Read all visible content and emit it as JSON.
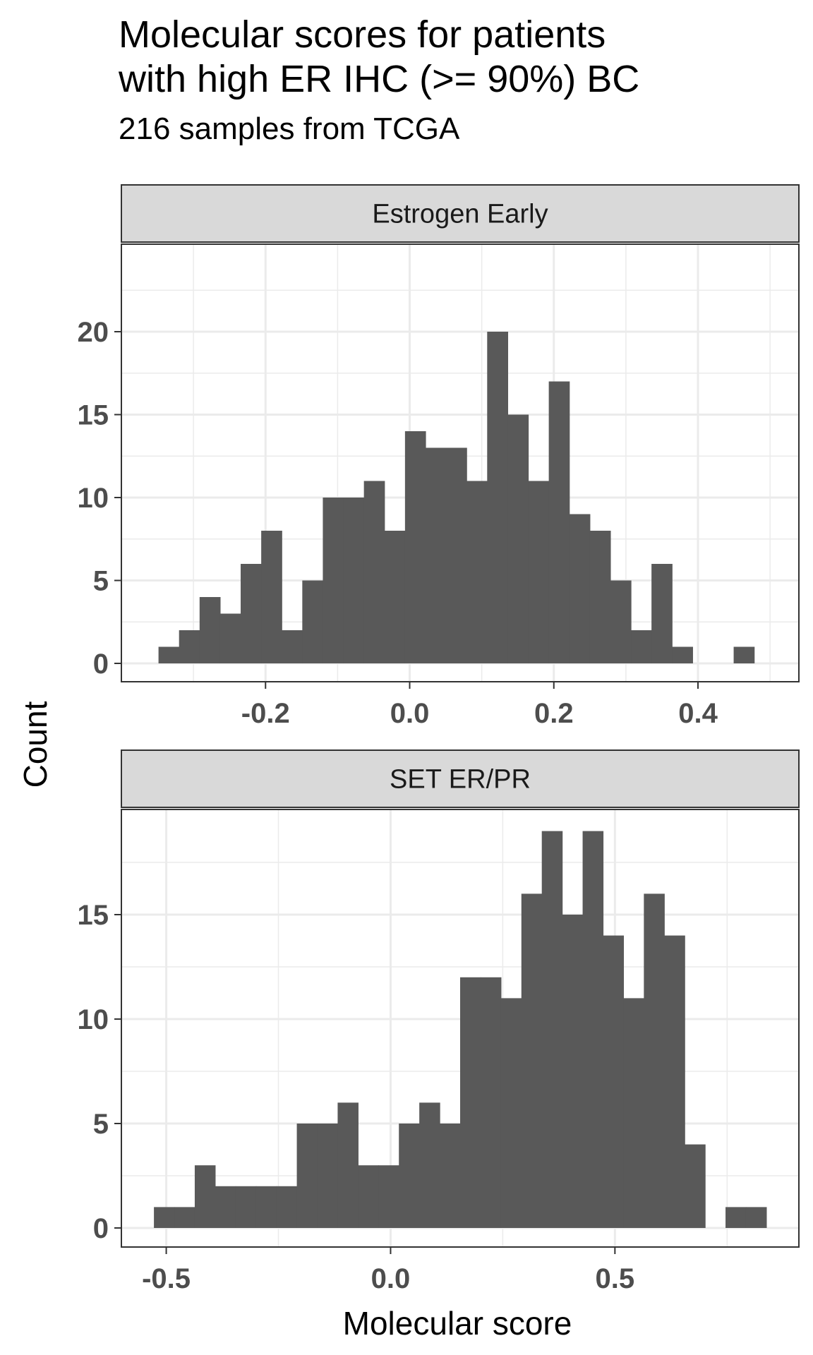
{
  "title_lines": [
    "Molecular scores for patients",
    "with high ER IHC (>= 90%) BC"
  ],
  "subtitle": "216 samples from TCGA",
  "xlabel": "Molecular score",
  "ylabel": "Count",
  "chart_data": [
    {
      "type": "bar",
      "title": "Estrogen Early",
      "xlabel": "Molecular score",
      "ylabel": "Count",
      "xlim": [
        -0.4,
        0.54
      ],
      "ylim": [
        0,
        20
      ],
      "xticks": [
        -0.2,
        0.0,
        0.2,
        0.4
      ],
      "xtick_labels": [
        "-0.2",
        "0.0",
        "0.2",
        "0.4"
      ],
      "yticks": [
        0,
        5,
        10,
        15,
        20
      ],
      "ytick_labels": [
        "0",
        "5",
        "10",
        "15",
        "20"
      ],
      "grid": true,
      "bin_start": -0.3485,
      "bin_width": 0.0285,
      "values": [
        1,
        2,
        4,
        3,
        6,
        8,
        2,
        5,
        10,
        10,
        11,
        8,
        14,
        13,
        13,
        11,
        20,
        15,
        11,
        17,
        9,
        8,
        5,
        2,
        6,
        1,
        0,
        0,
        1
      ],
      "color": "#595959"
    },
    {
      "type": "bar",
      "title": "SET ER/PR",
      "xlabel": "Molecular score",
      "ylabel": "Count",
      "xlim": [
        -0.6,
        0.91
      ],
      "ylim": [
        0,
        20
      ],
      "xticks": [
        -0.5,
        0.0,
        0.5
      ],
      "xtick_labels": [
        "-0.5",
        "0.0",
        "0.5"
      ],
      "yticks": [
        0,
        5,
        10,
        15
      ],
      "ytick_labels": [
        "0",
        "5",
        "10",
        "15"
      ],
      "grid": true,
      "bin_start": -0.5275,
      "bin_width": 0.0455,
      "values": [
        1,
        1,
        3,
        2,
        2,
        2,
        2,
        5,
        5,
        6,
        3,
        3,
        5,
        6,
        5,
        12,
        12,
        11,
        16,
        19,
        15,
        19,
        14,
        11,
        16,
        14,
        4,
        0,
        1,
        1
      ],
      "color": "#595959"
    }
  ]
}
